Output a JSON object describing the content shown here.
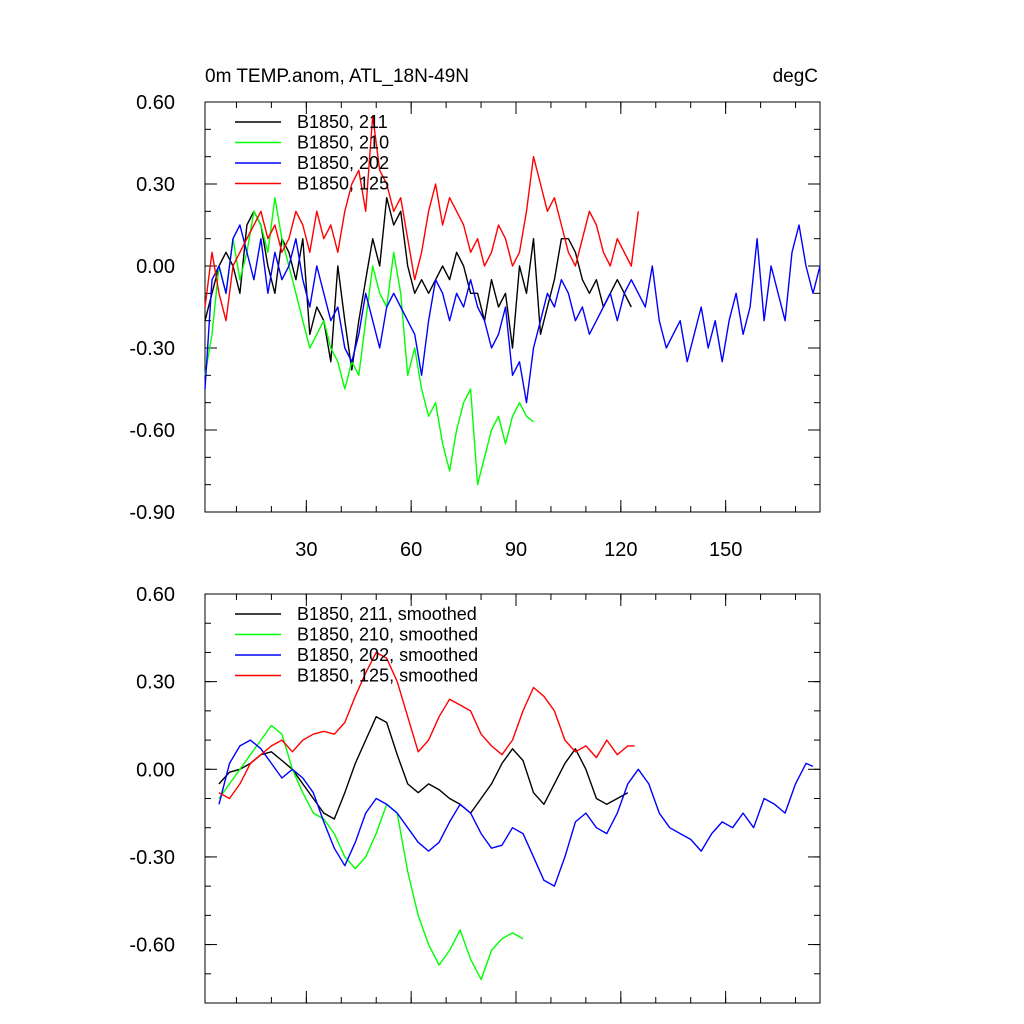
{
  "chart_data": [
    {
      "type": "line",
      "title": "0m TEMP.anom, ATL_18N-49N",
      "units": "degC",
      "xlim": [
        1,
        177
      ],
      "ylim": [
        -0.9,
        0.6
      ],
      "ytick_labels": [
        "0.60",
        "0.30",
        "0.00",
        "-0.30",
        "-0.60",
        "-0.90"
      ],
      "xtick_labels": [
        "30",
        "60",
        "90",
        "120",
        "150"
      ],
      "grid": false,
      "legend_position": "top-left",
      "series": [
        {
          "name": "B1850, 211",
          "color": "#000000",
          "x": [
            1,
            3,
            5,
            7,
            9,
            11,
            13,
            15,
            17,
            19,
            21,
            23,
            25,
            27,
            29,
            31,
            33,
            35,
            37,
            39,
            41,
            43,
            45,
            47,
            49,
            51,
            53,
            55,
            57,
            59,
            61,
            63,
            65,
            67,
            69,
            71,
            73,
            75,
            77,
            79,
            81,
            83,
            85,
            87,
            89,
            91,
            93,
            95,
            97,
            99,
            101,
            103,
            105,
            107,
            109,
            111,
            113,
            115,
            117,
            119,
            121,
            123
          ],
          "y": [
            -0.2,
            -0.1,
            0.0,
            0.05,
            0.0,
            -0.1,
            0.15,
            0.2,
            0.15,
            0.0,
            -0.1,
            0.1,
            0.05,
            -0.05,
            0.1,
            -0.25,
            -0.15,
            -0.2,
            -0.35,
            0.0,
            -0.2,
            -0.38,
            -0.2,
            -0.05,
            0.1,
            0.0,
            0.25,
            0.15,
            0.2,
            0.0,
            -0.1,
            -0.05,
            -0.1,
            -0.05,
            0.0,
            -0.05,
            0.05,
            0.0,
            -0.1,
            -0.1,
            -0.2,
            -0.05,
            -0.15,
            -0.1,
            -0.3,
            0.0,
            -0.1,
            0.1,
            -0.25,
            -0.15,
            -0.05,
            0.1,
            0.1,
            0.05,
            -0.05,
            -0.1,
            -0.05,
            -0.15,
            -0.1,
            -0.05,
            -0.1,
            -0.15
          ]
        },
        {
          "name": "B1850, 210",
          "color": "#00ff00",
          "x": [
            1,
            3,
            5,
            7,
            9,
            11,
            13,
            15,
            17,
            19,
            21,
            23,
            25,
            27,
            29,
            31,
            33,
            35,
            37,
            39,
            41,
            43,
            45,
            47,
            49,
            51,
            53,
            55,
            57,
            59,
            61,
            63,
            65,
            67,
            69,
            71,
            73,
            75,
            77,
            79,
            81,
            83,
            85,
            87,
            89,
            91,
            93,
            95
          ],
          "y": [
            -0.4,
            -0.25,
            0.0,
            -0.1,
            0.1,
            -0.05,
            0.05,
            0.2,
            0.15,
            0.05,
            0.25,
            0.1,
            0.0,
            -0.1,
            -0.2,
            -0.3,
            -0.25,
            -0.2,
            -0.3,
            -0.35,
            -0.45,
            -0.35,
            -0.4,
            -0.2,
            0.0,
            -0.1,
            -0.15,
            0.05,
            -0.1,
            -0.4,
            -0.3,
            -0.45,
            -0.55,
            -0.5,
            -0.65,
            -0.75,
            -0.6,
            -0.5,
            -0.45,
            -0.8,
            -0.7,
            -0.6,
            -0.55,
            -0.65,
            -0.55,
            -0.5,
            -0.55,
            -0.57
          ]
        },
        {
          "name": "B1850, 202",
          "color": "#0000ff",
          "x": [
            1,
            3,
            5,
            7,
            9,
            11,
            13,
            15,
            17,
            19,
            21,
            23,
            25,
            27,
            29,
            31,
            33,
            35,
            37,
            39,
            41,
            43,
            45,
            47,
            49,
            51,
            53,
            55,
            57,
            59,
            61,
            63,
            65,
            67,
            69,
            71,
            73,
            75,
            77,
            79,
            81,
            83,
            85,
            87,
            89,
            91,
            93,
            95,
            97,
            99,
            101,
            103,
            105,
            107,
            109,
            111,
            113,
            115,
            117,
            119,
            121,
            123,
            125,
            127,
            129,
            131,
            133,
            135,
            137,
            139,
            141,
            143,
            145,
            147,
            149,
            151,
            153,
            155,
            157,
            159,
            161,
            163,
            165,
            167,
            169,
            171,
            173,
            175,
            177
          ],
          "y": [
            -0.45,
            -0.05,
            0.0,
            -0.1,
            0.1,
            0.15,
            0.05,
            -0.05,
            0.1,
            -0.1,
            0.05,
            -0.05,
            0.0,
            0.1,
            -0.05,
            -0.15,
            0.0,
            -0.1,
            -0.2,
            -0.15,
            -0.3,
            -0.35,
            -0.25,
            -0.1,
            -0.2,
            -0.3,
            -0.15,
            -0.1,
            -0.15,
            -0.2,
            -0.25,
            -0.4,
            -0.2,
            -0.05,
            -0.1,
            -0.2,
            -0.1,
            -0.15,
            -0.05,
            -0.15,
            -0.2,
            -0.3,
            -0.25,
            -0.15,
            -0.4,
            -0.35,
            -0.5,
            -0.3,
            -0.2,
            -0.1,
            -0.15,
            -0.05,
            -0.1,
            -0.2,
            -0.15,
            -0.25,
            -0.2,
            -0.15,
            -0.1,
            -0.2,
            -0.1,
            -0.05,
            -0.1,
            -0.15,
            0.0,
            -0.2,
            -0.3,
            -0.25,
            -0.2,
            -0.35,
            -0.25,
            -0.15,
            -0.3,
            -0.2,
            -0.35,
            -0.2,
            -0.1,
            -0.25,
            -0.15,
            0.1,
            -0.2,
            0.0,
            -0.1,
            -0.2,
            0.05,
            0.15,
            0.0,
            -0.1,
            0.0
          ]
        },
        {
          "name": "B1850, 125",
          "color": "#ff0000",
          "x": [
            1,
            3,
            5,
            7,
            9,
            11,
            13,
            15,
            17,
            19,
            21,
            23,
            25,
            27,
            29,
            31,
            33,
            35,
            37,
            39,
            41,
            43,
            45,
            47,
            49,
            51,
            53,
            55,
            57,
            59,
            61,
            63,
            65,
            67,
            69,
            71,
            73,
            75,
            77,
            79,
            81,
            83,
            85,
            87,
            89,
            91,
            93,
            95,
            97,
            99,
            101,
            103,
            105,
            107,
            109,
            111,
            113,
            115,
            117,
            119,
            121,
            123,
            125
          ],
          "y": [
            -0.15,
            0.05,
            -0.1,
            -0.2,
            0.0,
            0.05,
            0.1,
            0.15,
            0.2,
            0.1,
            0.15,
            0.05,
            0.1,
            0.2,
            0.15,
            0.05,
            0.2,
            0.1,
            0.15,
            0.05,
            0.2,
            0.3,
            0.35,
            0.2,
            0.55,
            0.35,
            0.3,
            0.2,
            0.25,
            0.1,
            -0.05,
            0.05,
            0.2,
            0.3,
            0.15,
            0.25,
            0.2,
            0.15,
            0.05,
            0.1,
            0.0,
            0.05,
            0.15,
            0.1,
            0.0,
            0.05,
            0.2,
            0.4,
            0.3,
            0.2,
            0.25,
            0.15,
            0.05,
            0.0,
            0.1,
            0.2,
            0.15,
            0.05,
            0.0,
            0.1,
            0.05,
            0.0,
            0.2
          ]
        }
      ]
    },
    {
      "type": "line",
      "title": "",
      "xlim": [
        1,
        177
      ],
      "ylim": [
        -0.8,
        0.6
      ],
      "ytick_labels": [
        "0.60",
        "0.30",
        "0.00",
        "-0.30",
        "-0.60"
      ],
      "xtick_labels": [],
      "grid": false,
      "legend_position": "top-left",
      "series": [
        {
          "name": "B1850, 211, smoothed",
          "color": "#000000",
          "x": [
            5,
            8,
            11,
            14,
            17,
            20,
            23,
            26,
            29,
            32,
            35,
            38,
            41,
            44,
            47,
            50,
            53,
            56,
            59,
            62,
            65,
            68,
            71,
            74,
            77,
            80,
            83,
            86,
            89,
            92,
            95,
            98,
            101,
            104,
            107,
            110,
            113,
            116,
            119,
            122
          ],
          "y": [
            -0.05,
            -0.01,
            0.0,
            0.02,
            0.05,
            0.06,
            0.03,
            0.0,
            -0.05,
            -0.1,
            -0.15,
            -0.17,
            -0.08,
            0.02,
            0.1,
            0.18,
            0.16,
            0.05,
            -0.05,
            -0.08,
            -0.05,
            -0.07,
            -0.1,
            -0.12,
            -0.15,
            -0.1,
            -0.05,
            0.02,
            0.07,
            0.03,
            -0.08,
            -0.12,
            -0.05,
            0.02,
            0.07,
            0.0,
            -0.1,
            -0.12,
            -0.1,
            -0.08
          ]
        },
        {
          "name": "B1850, 210, smoothed",
          "color": "#00ff00",
          "x": [
            5,
            8,
            11,
            14,
            17,
            20,
            23,
            26,
            29,
            32,
            35,
            38,
            41,
            44,
            47,
            50,
            53,
            56,
            59,
            62,
            65,
            68,
            71,
            74,
            77,
            80,
            83,
            86,
            89,
            92
          ],
          "y": [
            -0.1,
            -0.05,
            0.0,
            0.05,
            0.1,
            0.15,
            0.12,
            0.0,
            -0.08,
            -0.15,
            -0.17,
            -0.22,
            -0.3,
            -0.34,
            -0.3,
            -0.22,
            -0.12,
            -0.15,
            -0.35,
            -0.5,
            -0.6,
            -0.67,
            -0.62,
            -0.55,
            -0.65,
            -0.72,
            -0.62,
            -0.58,
            -0.56,
            -0.58
          ]
        },
        {
          "name": "B1850, 202, smoothed",
          "color": "#0000ff",
          "x": [
            5,
            8,
            11,
            14,
            17,
            20,
            23,
            26,
            29,
            32,
            35,
            38,
            41,
            44,
            47,
            50,
            53,
            56,
            59,
            62,
            65,
            68,
            71,
            74,
            77,
            80,
            83,
            86,
            89,
            92,
            95,
            98,
            101,
            104,
            107,
            110,
            113,
            116,
            119,
            122,
            125,
            128,
            131,
            134,
            137,
            140,
            143,
            146,
            149,
            152,
            155,
            158,
            161,
            164,
            167,
            170,
            173,
            175
          ],
          "y": [
            -0.12,
            0.02,
            0.08,
            0.1,
            0.07,
            0.02,
            -0.03,
            0.0,
            -0.03,
            -0.08,
            -0.18,
            -0.27,
            -0.33,
            -0.25,
            -0.15,
            -0.1,
            -0.12,
            -0.15,
            -0.2,
            -0.25,
            -0.28,
            -0.25,
            -0.18,
            -0.12,
            -0.15,
            -0.22,
            -0.27,
            -0.26,
            -0.2,
            -0.22,
            -0.3,
            -0.38,
            -0.4,
            -0.3,
            -0.18,
            -0.15,
            -0.2,
            -0.22,
            -0.15,
            -0.05,
            0.0,
            -0.05,
            -0.15,
            -0.2,
            -0.22,
            -0.24,
            -0.28,
            -0.22,
            -0.18,
            -0.2,
            -0.15,
            -0.2,
            -0.1,
            -0.12,
            -0.15,
            -0.05,
            0.02,
            0.01
          ]
        },
        {
          "name": "B1850, 125, smoothed",
          "color": "#ff0000",
          "x": [
            5,
            8,
            11,
            14,
            17,
            20,
            23,
            26,
            29,
            32,
            35,
            38,
            41,
            44,
            47,
            50,
            53,
            56,
            59,
            62,
            65,
            68,
            71,
            74,
            77,
            80,
            83,
            86,
            89,
            92,
            95,
            98,
            101,
            104,
            107,
            110,
            113,
            116,
            119,
            122,
            124
          ],
          "y": [
            -0.08,
            -0.1,
            -0.05,
            0.02,
            0.05,
            0.08,
            0.1,
            0.06,
            0.1,
            0.12,
            0.13,
            0.12,
            0.16,
            0.25,
            0.33,
            0.4,
            0.38,
            0.3,
            0.18,
            0.06,
            0.1,
            0.18,
            0.24,
            0.22,
            0.2,
            0.12,
            0.08,
            0.05,
            0.1,
            0.2,
            0.28,
            0.25,
            0.2,
            0.1,
            0.06,
            0.08,
            0.04,
            0.1,
            0.05,
            0.08,
            0.08
          ]
        }
      ]
    }
  ]
}
